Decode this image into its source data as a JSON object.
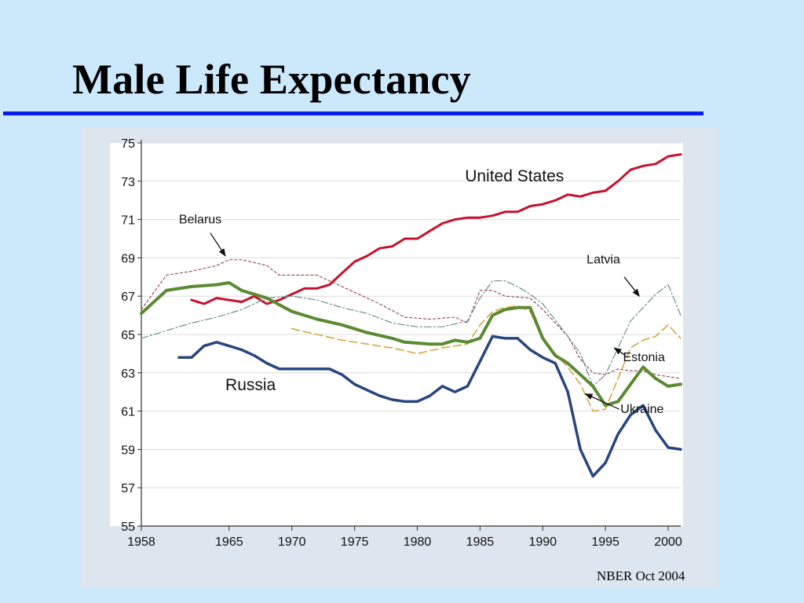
{
  "slide": {
    "title": "Male Life Expectancy",
    "footer": "NBER Oct 2004"
  },
  "colors": {
    "background": "#cce8fb",
    "rule": "#0a1bef",
    "panel": "#dde5ee",
    "plot": "#ffffff"
  },
  "chart_data": {
    "type": "line",
    "title": "",
    "xlabel": "",
    "ylabel": "",
    "xlim": [
      1958,
      2001
    ],
    "ylim": [
      55,
      75
    ],
    "x_ticks": [
      1958,
      1965,
      1970,
      1975,
      1980,
      1985,
      1990,
      1995,
      2000
    ],
    "y_ticks": [
      55,
      57,
      59,
      61,
      63,
      65,
      67,
      69,
      71,
      73,
      75
    ],
    "grid": true,
    "series": [
      {
        "name": "United States",
        "color": "#c8102e",
        "width": 3,
        "dash": "",
        "points": [
          [
            1962,
            66.8
          ],
          [
            1963,
            66.6
          ],
          [
            1964,
            66.9
          ],
          [
            1965,
            66.8
          ],
          [
            1966,
            66.7
          ],
          [
            1967,
            67.0
          ],
          [
            1968,
            66.6
          ],
          [
            1969,
            66.8
          ],
          [
            1970,
            67.1
          ],
          [
            1971,
            67.4
          ],
          [
            1972,
            67.4
          ],
          [
            1973,
            67.6
          ],
          [
            1974,
            68.2
          ],
          [
            1975,
            68.8
          ],
          [
            1976,
            69.1
          ],
          [
            1977,
            69.5
          ],
          [
            1978,
            69.6
          ],
          [
            1979,
            70.0
          ],
          [
            1980,
            70.0
          ],
          [
            1981,
            70.4
          ],
          [
            1982,
            70.8
          ],
          [
            1983,
            71.0
          ],
          [
            1984,
            71.1
          ],
          [
            1985,
            71.1
          ],
          [
            1986,
            71.2
          ],
          [
            1987,
            71.4
          ],
          [
            1988,
            71.4
          ],
          [
            1989,
            71.7
          ],
          [
            1990,
            71.8
          ],
          [
            1991,
            72.0
          ],
          [
            1992,
            72.3
          ],
          [
            1993,
            72.2
          ],
          [
            1994,
            72.4
          ],
          [
            1995,
            72.5
          ],
          [
            1996,
            73.0
          ],
          [
            1997,
            73.6
          ],
          [
            1998,
            73.8
          ],
          [
            1999,
            73.9
          ],
          [
            2000,
            74.3
          ],
          [
            2001,
            74.4
          ]
        ]
      },
      {
        "name": "Belarus",
        "color": "#9a4f5c",
        "width": 1.2,
        "dash": "3,3",
        "points": [
          [
            1958,
            66.3
          ],
          [
            1960,
            68.1
          ],
          [
            1962,
            68.3
          ],
          [
            1964,
            68.6
          ],
          [
            1965,
            68.9
          ],
          [
            1966,
            68.9
          ],
          [
            1968,
            68.6
          ],
          [
            1969,
            68.1
          ],
          [
            1972,
            68.1
          ],
          [
            1973,
            67.8
          ],
          [
            1975,
            67.2
          ],
          [
            1977,
            66.6
          ],
          [
            1979,
            65.9
          ],
          [
            1981,
            65.8
          ],
          [
            1983,
            65.9
          ],
          [
            1984,
            65.6
          ],
          [
            1985,
            67.3
          ],
          [
            1986,
            67.3
          ],
          [
            1987,
            67.0
          ],
          [
            1989,
            66.9
          ],
          [
            1990,
            66.3
          ],
          [
            1992,
            64.9
          ],
          [
            1993,
            63.7
          ],
          [
            1994,
            63.0
          ],
          [
            1995,
            62.9
          ],
          [
            1996,
            63.2
          ],
          [
            1997,
            63.1
          ],
          [
            1998,
            63.1
          ],
          [
            1999,
            62.9
          ],
          [
            2000,
            62.8
          ],
          [
            2001,
            62.7
          ]
        ]
      },
      {
        "name": "Latvia",
        "color": "#6e8e8e",
        "width": 1.2,
        "dash": "9,3,2,3",
        "points": [
          [
            1958,
            64.8
          ],
          [
            1960,
            65.2
          ],
          [
            1962,
            65.6
          ],
          [
            1964,
            65.9
          ],
          [
            1966,
            66.3
          ],
          [
            1968,
            66.9
          ],
          [
            1970,
            67.0
          ],
          [
            1972,
            66.8
          ],
          [
            1974,
            66.4
          ],
          [
            1976,
            66.1
          ],
          [
            1978,
            65.6
          ],
          [
            1980,
            65.4
          ],
          [
            1982,
            65.4
          ],
          [
            1984,
            65.7
          ],
          [
            1985,
            66.9
          ],
          [
            1986,
            67.8
          ],
          [
            1987,
            67.8
          ],
          [
            1988,
            67.5
          ],
          [
            1989,
            67.1
          ],
          [
            1990,
            66.6
          ],
          [
            1992,
            64.9
          ],
          [
            1993,
            64.0
          ],
          [
            1994,
            62.3
          ],
          [
            1995,
            62.9
          ],
          [
            1996,
            64.3
          ],
          [
            1997,
            65.7
          ],
          [
            1998,
            66.4
          ],
          [
            1999,
            67.1
          ],
          [
            2000,
            67.6
          ],
          [
            2001,
            66.0
          ]
        ]
      },
      {
        "name": "Estonia",
        "color": "#d7a640",
        "width": 1.6,
        "dash": "10,5",
        "points": [
          [
            1970,
            65.3
          ],
          [
            1972,
            65.0
          ],
          [
            1974,
            64.7
          ],
          [
            1976,
            64.5
          ],
          [
            1978,
            64.3
          ],
          [
            1980,
            64.0
          ],
          [
            1982,
            64.3
          ],
          [
            1984,
            64.5
          ],
          [
            1985,
            65.5
          ],
          [
            1986,
            66.2
          ],
          [
            1987,
            66.4
          ],
          [
            1988,
            66.5
          ],
          [
            1989,
            66.2
          ],
          [
            1990,
            64.7
          ],
          [
            1992,
            63.3
          ],
          [
            1993,
            62.4
          ],
          [
            1994,
            61.0
          ],
          [
            1995,
            61.1
          ],
          [
            1996,
            62.7
          ],
          [
            1997,
            64.3
          ],
          [
            1998,
            64.7
          ],
          [
            1999,
            64.9
          ],
          [
            2000,
            65.5
          ],
          [
            2001,
            64.8
          ]
        ]
      },
      {
        "name": "Ukraine",
        "color": "#5b8a32",
        "width": 4,
        "dash": "",
        "points": [
          [
            1958,
            66.1
          ],
          [
            1960,
            67.3
          ],
          [
            1962,
            67.5
          ],
          [
            1964,
            67.6
          ],
          [
            1965,
            67.7
          ],
          [
            1966,
            67.3
          ],
          [
            1968,
            66.9
          ],
          [
            1970,
            66.2
          ],
          [
            1972,
            65.8
          ],
          [
            1974,
            65.5
          ],
          [
            1976,
            65.1
          ],
          [
            1978,
            64.8
          ],
          [
            1979,
            64.6
          ],
          [
            1981,
            64.5
          ],
          [
            1982,
            64.5
          ],
          [
            1983,
            64.7
          ],
          [
            1984,
            64.6
          ],
          [
            1985,
            64.8
          ],
          [
            1986,
            66.0
          ],
          [
            1987,
            66.3
          ],
          [
            1988,
            66.4
          ],
          [
            1989,
            66.4
          ],
          [
            1990,
            64.8
          ],
          [
            1991,
            63.9
          ],
          [
            1992,
            63.5
          ],
          [
            1993,
            62.9
          ],
          [
            1994,
            62.3
          ],
          [
            1995,
            61.3
          ],
          [
            1996,
            61.5
          ],
          [
            1997,
            62.4
          ],
          [
            1998,
            63.3
          ],
          [
            1999,
            62.7
          ],
          [
            2000,
            62.3
          ],
          [
            2001,
            62.4
          ]
        ]
      },
      {
        "name": "Russia",
        "color": "#27467f",
        "width": 3.5,
        "dash": "",
        "points": [
          [
            1961,
            63.8
          ],
          [
            1962,
            63.8
          ],
          [
            1963,
            64.4
          ],
          [
            1964,
            64.6
          ],
          [
            1965,
            64.4
          ],
          [
            1966,
            64.2
          ],
          [
            1967,
            63.9
          ],
          [
            1968,
            63.5
          ],
          [
            1969,
            63.2
          ],
          [
            1970,
            63.2
          ],
          [
            1973,
            63.2
          ],
          [
            1974,
            62.9
          ],
          [
            1975,
            62.4
          ],
          [
            1976,
            62.1
          ],
          [
            1977,
            61.8
          ],
          [
            1978,
            61.6
          ],
          [
            1979,
            61.5
          ],
          [
            1980,
            61.5
          ],
          [
            1981,
            61.8
          ],
          [
            1982,
            62.3
          ],
          [
            1983,
            62.0
          ],
          [
            1984,
            62.3
          ],
          [
            1985,
            63.6
          ],
          [
            1986,
            64.9
          ],
          [
            1987,
            64.8
          ],
          [
            1988,
            64.8
          ],
          [
            1989,
            64.2
          ],
          [
            1990,
            63.8
          ],
          [
            1991,
            63.5
          ],
          [
            1992,
            62.0
          ],
          [
            1993,
            59.0
          ],
          [
            1994,
            57.6
          ],
          [
            1995,
            58.3
          ],
          [
            1996,
            59.8
          ],
          [
            1997,
            60.8
          ],
          [
            1998,
            61.3
          ],
          [
            1999,
            60.0
          ],
          [
            2000,
            59.1
          ],
          [
            2001,
            59.0
          ]
        ]
      }
    ],
    "labels": [
      {
        "text": "United States",
        "x": 1983.8,
        "y": 73.0,
        "size": 21
      },
      {
        "text": "Belarus",
        "x": 1961.0,
        "y": 70.8,
        "size": 16
      },
      {
        "text": "Latvia",
        "x": 1993.5,
        "y": 68.7,
        "size": 16
      },
      {
        "text": "Estonia",
        "x": 1996.4,
        "y": 63.6,
        "size": 16
      },
      {
        "text": "Ukraine",
        "x": 1996.2,
        "y": 60.9,
        "size": 16
      },
      {
        "text": "Russia",
        "x": 1964.7,
        "y": 62.1,
        "size": 21
      }
    ],
    "arrows": [
      {
        "from": [
          1963.5,
          70.3
        ],
        "to": [
          1964.7,
          69.1
        ]
      },
      {
        "from": [
          1996.5,
          68.0
        ],
        "to": [
          1997.7,
          67.0
        ]
      },
      {
        "from": [
          1996.6,
          63.9
        ],
        "to": [
          1995.7,
          64.3
        ]
      },
      {
        "from": [
          1996.1,
          61.1
        ],
        "to": [
          1993.4,
          61.9
        ]
      }
    ]
  }
}
